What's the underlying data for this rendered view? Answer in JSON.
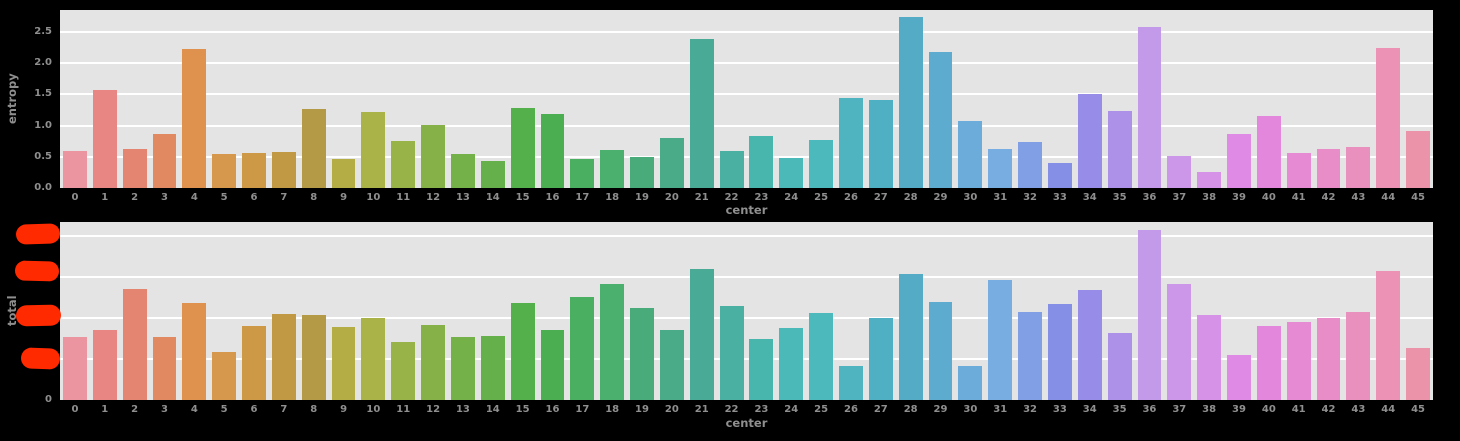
{
  "figure": {
    "background": "#000000",
    "plot_background": "#e5e4e4",
    "grid_color": "#ffffff",
    "text_color": "#8f8f8f",
    "redaction_color": "#ff2a00"
  },
  "palette": [
    "hsl(353,67%,75%)",
    "hsl(2,68%,71%)",
    "hsl(10,68%,67%)",
    "hsl(19,68%,63%)",
    "hsl(28,69%,59%)",
    "hsl(33,63%,57%)",
    "hsl(37,57%,54%)",
    "hsl(41,50%,51%)",
    "hsl(46,44%,49%)",
    "hsl(56,44%,49%)",
    "hsl(65,43%,49%)",
    "hsl(75,43%,49%)",
    "hsl(85,42%,49%)",
    "hsl(95,42%,49%)",
    "hsl(104,41%,49%)",
    "hsl(114,41%,49%)",
    "hsl(124,40%,49%)",
    "hsl(133,40%,49%)",
    "hsl(141,40%,49%)",
    "hsl(150,40%,48%)",
    "hsl(158,40%,48%)",
    "hsl(167,40%,48%)",
    "hsl(171,41%,49%)",
    "hsl(175,43%,50%)",
    "hsl(179,44%,51%)",
    "hsl(182,46%,52%)",
    "hsl(186,47%,53%)",
    "hsl(190,49%,54%)",
    "hsl(194,50%,55%)",
    "hsl(199,55%,59%)",
    "hsl(205,60%,64%)",
    "hsl(210,65%,68%)",
    "hsl(222,65%,70%)",
    "hsl(234,65%,71%)",
    "hsl(247,66%,73%)",
    "hsl(259,66%,74%)",
    "hsl(271,66%,76%)",
    "hsl(279,65%,75%)",
    "hsl(288,64%,74%)",
    "hsl(296,63%,72%)",
    "hsl(304,62%,71%)",
    "hsl(312,64%,72%)",
    "hsl(321,66%,73%)",
    "hsl(329,68%,74%)",
    "hsl(337,70%,75%)",
    "hsl(345,69%,75%)"
  ],
  "chart_data": [
    {
      "type": "bar",
      "title": "",
      "ylabel": "entropy",
      "xlabel": "center",
      "categories": [
        "0",
        "1",
        "2",
        "3",
        "4",
        "5",
        "6",
        "7",
        "8",
        "9",
        "10",
        "11",
        "12",
        "13",
        "14",
        "15",
        "16",
        "17",
        "18",
        "19",
        "20",
        "21",
        "22",
        "23",
        "24",
        "25",
        "26",
        "27",
        "28",
        "29",
        "30",
        "31",
        "32",
        "33",
        "34",
        "35",
        "36",
        "37",
        "38",
        "39",
        "40",
        "41",
        "42",
        "43",
        "44",
        "45"
      ],
      "values": [
        0.6,
        1.57,
        0.62,
        0.87,
        2.23,
        0.54,
        0.56,
        0.58,
        1.26,
        0.46,
        1.22,
        0.75,
        1.01,
        0.54,
        0.44,
        1.28,
        1.18,
        0.47,
        0.61,
        0.5,
        0.8,
        2.38,
        0.6,
        0.83,
        0.48,
        0.77,
        1.44,
        1.41,
        2.74,
        2.18,
        1.08,
        0.62,
        0.74,
        0.4,
        1.5,
        1.24,
        2.58,
        0.51,
        0.26,
        0.87,
        1.16,
        0.56,
        0.62,
        0.65,
        2.24,
        0.92
      ],
      "ylim": [
        0,
        2.85
      ],
      "yticks": [
        0,
        0.5,
        1,
        1.5,
        2,
        2.5
      ],
      "ytick_labels": [
        "0.0",
        "0.5",
        "1.0",
        "1.5",
        "2.0",
        "2.5"
      ],
      "grid": "horizontal",
      "legend": "none"
    },
    {
      "type": "bar",
      "title": "",
      "ylabel": "total",
      "xlabel": "center",
      "categories": [
        "0",
        "1",
        "2",
        "3",
        "4",
        "5",
        "6",
        "7",
        "8",
        "9",
        "10",
        "11",
        "12",
        "13",
        "14",
        "15",
        "16",
        "17",
        "18",
        "19",
        "20",
        "21",
        "22",
        "23",
        "24",
        "25",
        "26",
        "27",
        "28",
        "29",
        "30",
        "31",
        "32",
        "33",
        "34",
        "35",
        "36",
        "37",
        "38",
        "39",
        "40",
        "41",
        "42",
        "43",
        "44",
        "45"
      ],
      "values": [
        1.53,
        1.7,
        2.72,
        1.55,
        2.38,
        1.17,
        1.82,
        2.11,
        2.07,
        1.79,
        2.0,
        1.41,
        1.84,
        1.53,
        1.56,
        2.38,
        1.71,
        2.52,
        2.83,
        2.24,
        1.71,
        3.2,
        2.3,
        1.49,
        1.76,
        2.12,
        0.84,
        2.0,
        3.07,
        2.4,
        0.84,
        2.93,
        2.15,
        2.34,
        2.68,
        1.64,
        4.16,
        2.83,
        2.07,
        1.1,
        1.8,
        1.9,
        2.0,
        2.15,
        3.15,
        1.28
      ],
      "values_note": "y tick values above 0 are hidden by red scribbles; bar heights given in gridline units",
      "ylim": [
        0,
        4.35
      ],
      "yticks": [
        0,
        1,
        2,
        3,
        4
      ],
      "ytick_labels": [
        "0",
        null,
        null,
        null,
        null
      ],
      "redacted_tick_count": 4,
      "grid": "horizontal",
      "legend": "none"
    }
  ]
}
